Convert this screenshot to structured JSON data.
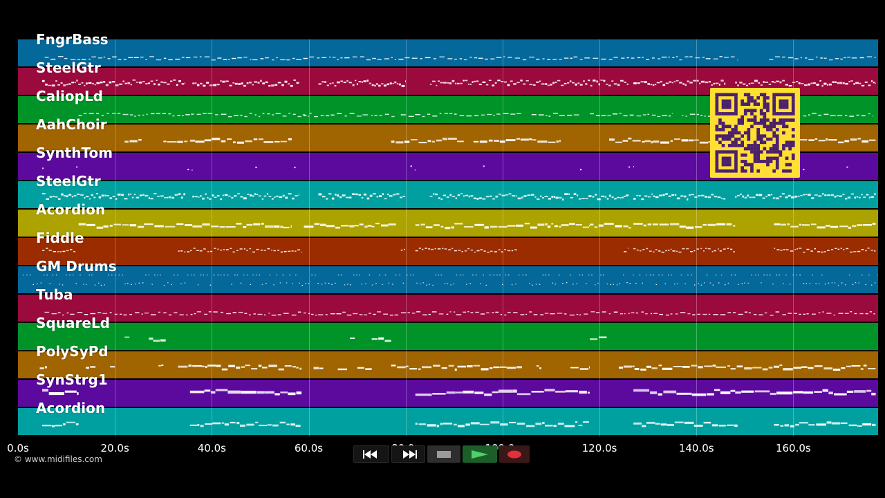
{
  "source_credit": "© www.midifiles.com",
  "colors": {
    "background": "#000000",
    "note": "#ffffff",
    "qr_bg": "#ffdf33",
    "qr_fg": "#4a1f70"
  },
  "timeline": {
    "max_seconds": 177.5,
    "ticks": [
      {
        "t": 0,
        "label": "0.0s"
      },
      {
        "t": 20,
        "label": "20.0s"
      },
      {
        "t": 40,
        "label": "40.0s"
      },
      {
        "t": 60,
        "label": "60.0s"
      },
      {
        "t": 80,
        "label": "80.0s"
      },
      {
        "t": 100,
        "label": "100.0s"
      },
      {
        "t": 120,
        "label": "120.0s"
      },
      {
        "t": 140,
        "label": "140.0s"
      },
      {
        "t": 160,
        "label": "160.0s"
      }
    ]
  },
  "tracks": [
    {
      "name": "FngrBass",
      "color": "#05689a",
      "style": "line",
      "segments": [
        [
          5.5,
          148.5
        ],
        [
          155,
          177
        ]
      ]
    },
    {
      "name": "SteelGtr",
      "color": "#9a0a3c",
      "style": "dense",
      "segments": [
        [
          5,
          34.5
        ],
        [
          36,
          58
        ],
        [
          62,
          80
        ],
        [
          85,
          126
        ],
        [
          127,
          146
        ],
        [
          148,
          177
        ]
      ]
    },
    {
      "name": "CaliopLd",
      "color": "#009428",
      "style": "line",
      "segments": [
        [
          12.5,
          60
        ],
        [
          59,
          78
        ],
        [
          79,
          104
        ],
        [
          106,
          116
        ],
        [
          118,
          135
        ],
        [
          137,
          160
        ],
        [
          162,
          176.5
        ]
      ]
    },
    {
      "name": "AahChoir",
      "color": "#a06400",
      "style": "block",
      "segments": [
        [
          22,
          25.5
        ],
        [
          30,
          35
        ],
        [
          35.5,
          56.5
        ],
        [
          77,
          92
        ],
        [
          94,
          112
        ],
        [
          122,
          131
        ],
        [
          131,
          145
        ],
        [
          145,
          158
        ],
        [
          158,
          177
        ]
      ]
    },
    {
      "name": "SynthTom",
      "color": "#5c0a9e",
      "style": "dots",
      "segments": [
        [
          5,
          6
        ],
        [
          12,
          13
        ],
        [
          35,
          36
        ],
        [
          49,
          50
        ],
        [
          57,
          58.5
        ],
        [
          81,
          82
        ],
        [
          96,
          97
        ],
        [
          116,
          117
        ],
        [
          126,
          127
        ],
        [
          149,
          150
        ],
        [
          162,
          163
        ],
        [
          171,
          172
        ]
      ]
    },
    {
      "name": "SteelGtr",
      "color": "#00a0a0",
      "style": "dense",
      "segments": [
        [
          5,
          34.5
        ],
        [
          36,
          58
        ],
        [
          62,
          80
        ],
        [
          85,
          126
        ],
        [
          127,
          146
        ],
        [
          148,
          177
        ]
      ]
    },
    {
      "name": "Acordion",
      "color": "#aca200",
      "style": "block",
      "segments": [
        [
          12.5,
          26
        ],
        [
          26,
          36
        ],
        [
          36,
          56.5
        ],
        [
          59,
          73
        ],
        [
          73,
          78
        ],
        [
          82,
          101
        ],
        [
          101,
          118
        ],
        [
          118,
          126.5
        ],
        [
          127,
          148
        ],
        [
          156,
          177
        ]
      ]
    },
    {
      "name": "Fiddle",
      "color": "#9a2c00",
      "style": "mixed",
      "segments": [
        [
          5,
          12
        ],
        [
          33,
          58.5
        ],
        [
          79,
          80
        ],
        [
          82,
          103
        ],
        [
          125,
          126
        ],
        [
          127,
          148
        ],
        [
          156,
          177
        ]
      ]
    },
    {
      "name": "GM Drums",
      "color": "#05689a",
      "style": "drums",
      "segments": [
        [
          1,
          177.5
        ]
      ]
    },
    {
      "name": "Tuba",
      "color": "#9a0a3c",
      "style": "line",
      "segments": [
        [
          5.5,
          177
        ]
      ]
    },
    {
      "name": "SquareLd",
      "color": "#009428",
      "style": "block",
      "segments": [
        [
          22,
          23
        ],
        [
          27,
          30.5
        ],
        [
          68.5,
          69.5
        ],
        [
          73,
          77
        ],
        [
          118,
          121.5
        ]
      ]
    },
    {
      "name": "PolySyPd",
      "color": "#a06400",
      "style": "block",
      "segments": [
        [
          4.5,
          6
        ],
        [
          14,
          16
        ],
        [
          19,
          20
        ],
        [
          29,
          30
        ],
        [
          33,
          58.5
        ],
        [
          61,
          63
        ],
        [
          66,
          68
        ],
        [
          70,
          73
        ],
        [
          77,
          80
        ],
        [
          80,
          104
        ],
        [
          107,
          108
        ],
        [
          114,
          118
        ],
        [
          124,
          144
        ],
        [
          144,
          163
        ],
        [
          163,
          177
        ]
      ]
    },
    {
      "name": "SynStrg1",
      "color": "#5c0a9e",
      "style": "thick",
      "segments": [
        [
          5,
          12.5
        ],
        [
          35.5,
          58.5
        ],
        [
          82,
          103
        ],
        [
          103,
          118
        ],
        [
          127,
          148
        ],
        [
          148,
          162
        ],
        [
          162,
          177
        ]
      ]
    },
    {
      "name": "Acordion",
      "color": "#00a0a0",
      "style": "block",
      "segments": [
        [
          5,
          12.5
        ],
        [
          35.5,
          58.5
        ],
        [
          82,
          118
        ],
        [
          127,
          148.5
        ],
        [
          156,
          177
        ]
      ]
    }
  ],
  "transport": [
    {
      "id": "rewind",
      "icon": "rewind-icon"
    },
    {
      "id": "fast-forward",
      "icon": "fast-forward-icon"
    },
    {
      "id": "stop",
      "icon": "stop-icon"
    },
    {
      "id": "play",
      "icon": "play-icon"
    },
    {
      "id": "record",
      "icon": "record-icon"
    }
  ]
}
